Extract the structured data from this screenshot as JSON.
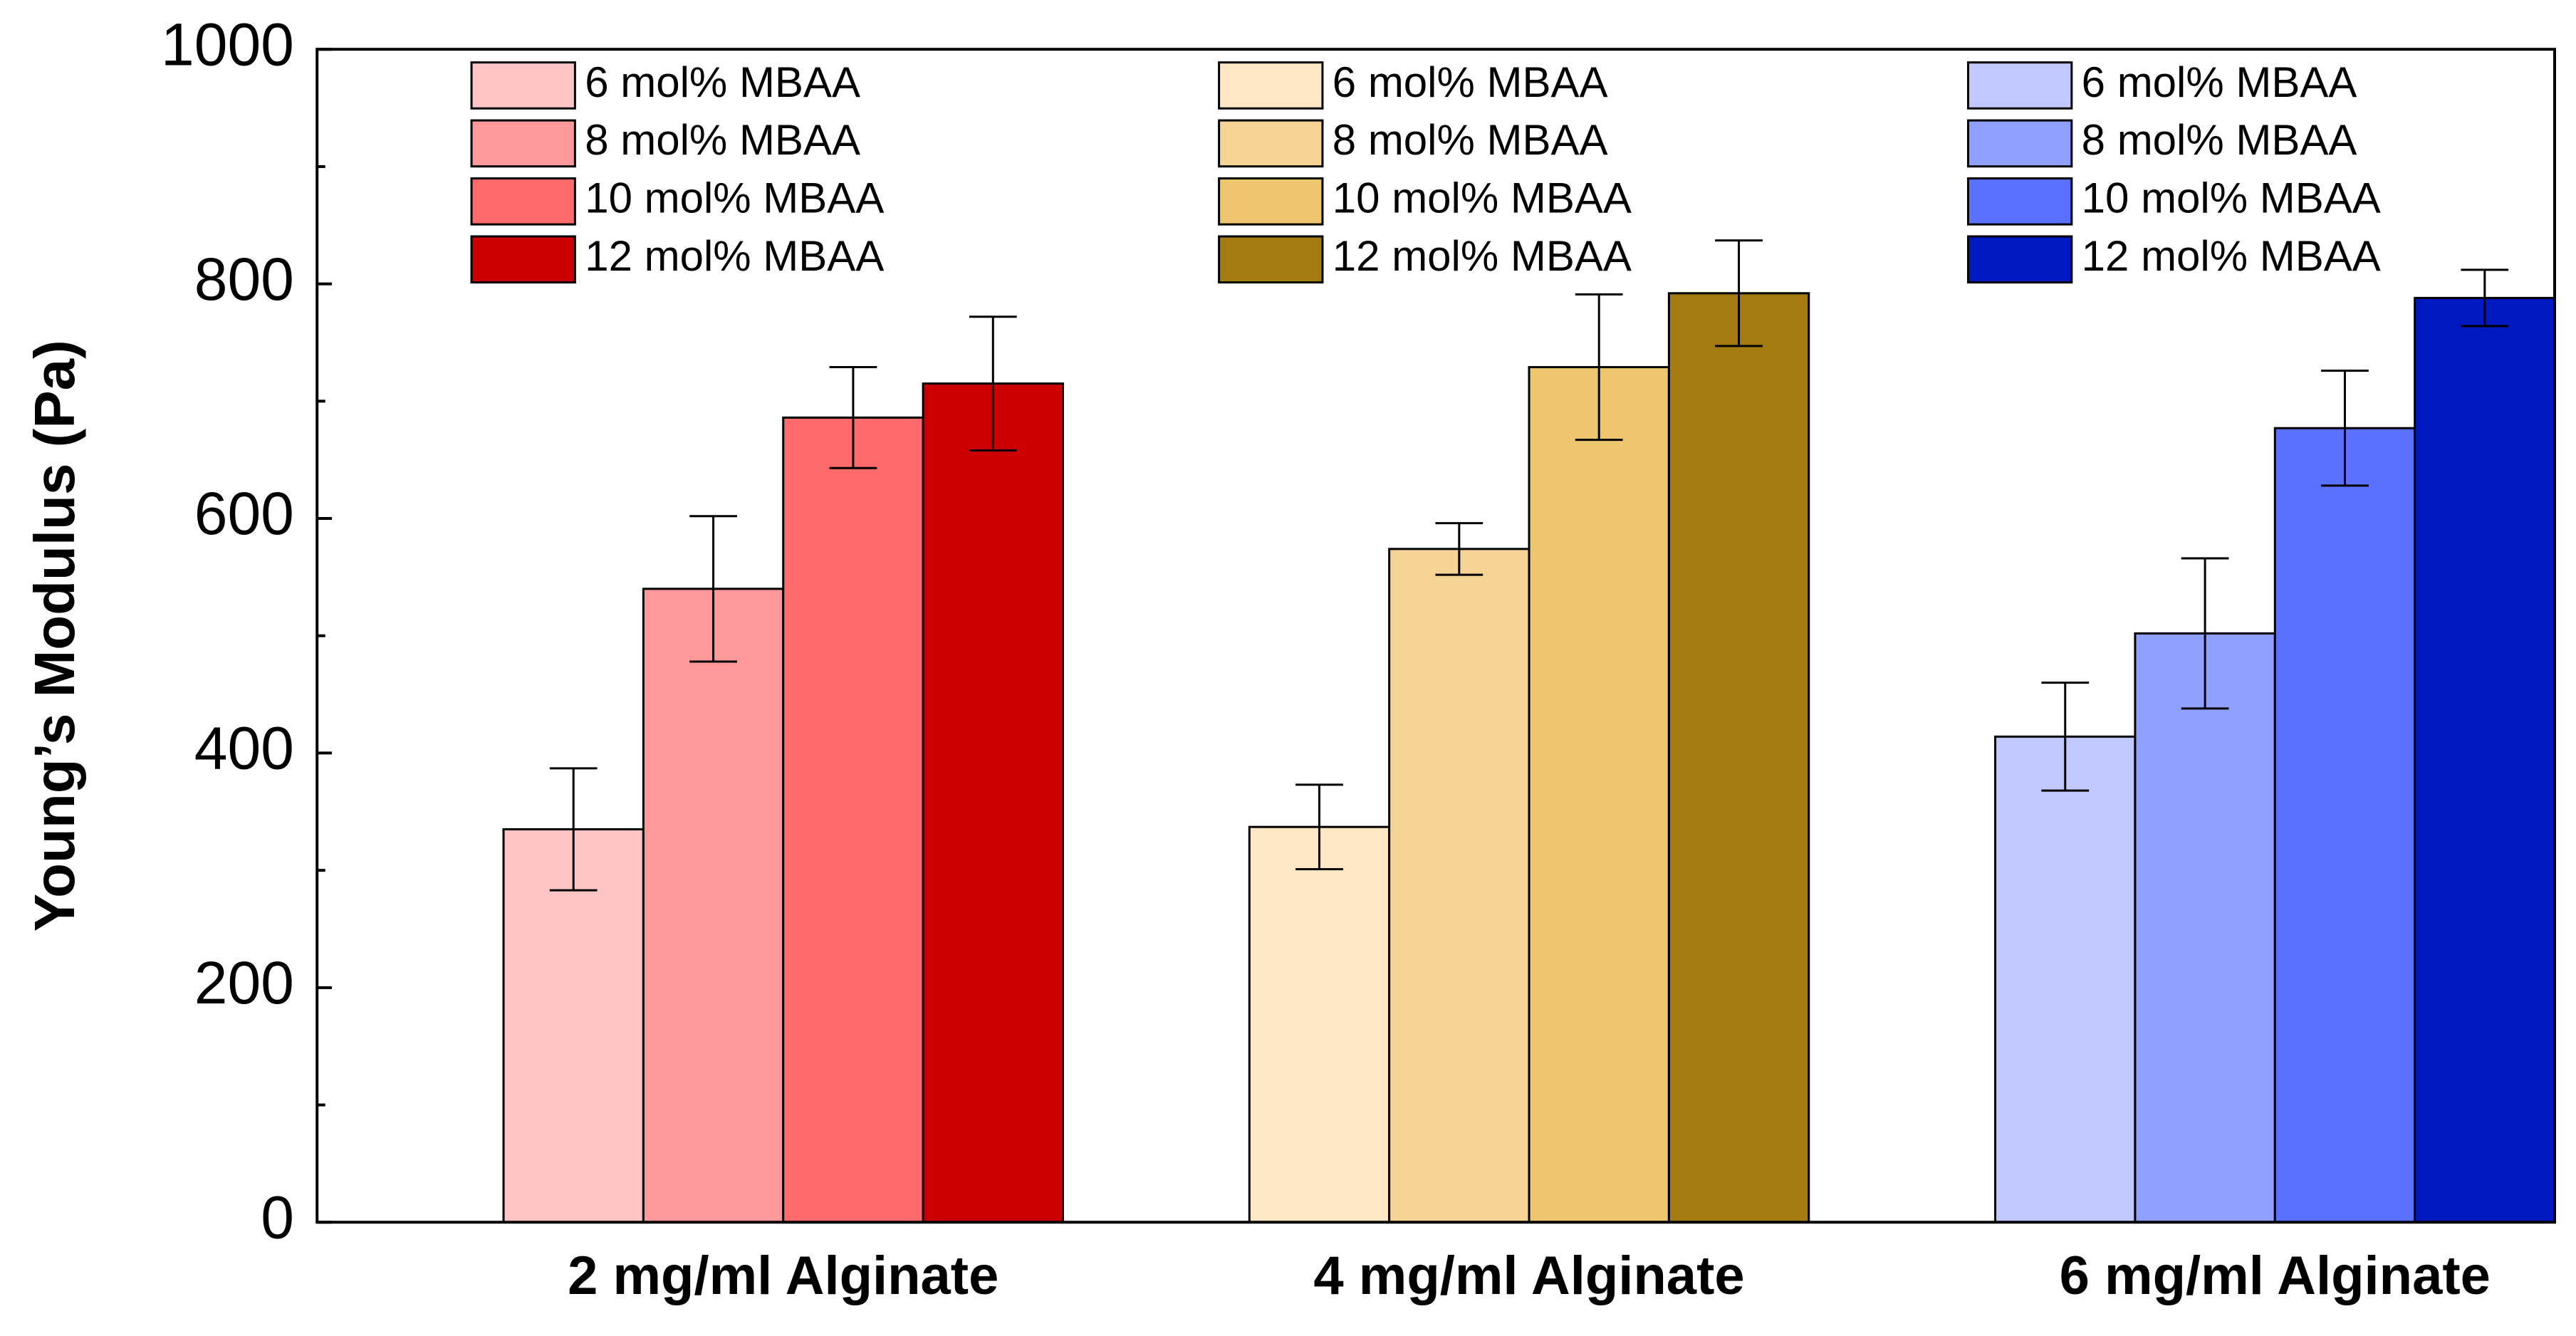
{
  "chart_data": {
    "type": "bar",
    "y_label": "Young’s Modulus (Pa)",
    "categories": [
      "2 mg/ml Alginate",
      "4 mg/ml Alginate",
      "6 mg/ml Alginate"
    ],
    "ylim": [
      0,
      1000
    ],
    "yticks": [
      0,
      200,
      400,
      600,
      800,
      1000
    ],
    "yminor_ticks": [
      100,
      300,
      500,
      700,
      900
    ],
    "series": [
      {
        "name": "6 mol% MBAA",
        "color": "#ffc4c4",
        "values": [
          335,
          null,
          null
        ],
        "errors": [
          52,
          null,
          null
        ]
      },
      {
        "name": "8 mol% MBAA",
        "color": "#ff9999",
        "values": [
          540,
          null,
          null
        ],
        "errors": [
          62,
          null,
          null
        ]
      },
      {
        "name": "10 mol% MBAA",
        "color": "#ff6b6b",
        "values": [
          686,
          null,
          null
        ],
        "errors": [
          43,
          null,
          null
        ]
      },
      {
        "name": "12 mol% MBAA",
        "color": "#cc0000",
        "values": [
          715,
          null,
          null
        ],
        "errors": [
          57,
          null,
          null
        ]
      },
      {
        "name": "6 mol% MBAA",
        "color": "#ffe6c4",
        "values": [
          null,
          337,
          null
        ],
        "errors": [
          null,
          36,
          null
        ]
      },
      {
        "name": "8 mol% MBAA",
        "color": "#f5d496",
        "values": [
          null,
          574,
          null
        ],
        "errors": [
          null,
          22,
          null
        ]
      },
      {
        "name": "10 mol% MBAA",
        "color": "#eec66e",
        "values": [
          null,
          729,
          null
        ],
        "errors": [
          null,
          62,
          null
        ]
      },
      {
        "name": "12 mol% MBAA",
        "color": "#a57a10",
        "values": [
          null,
          792,
          null
        ],
        "errors": [
          null,
          45,
          null
        ]
      },
      {
        "name": "6 mol% MBAA",
        "color": "#c0c8ff",
        "values": [
          null,
          null,
          414
        ],
        "errors": [
          null,
          null,
          46
        ]
      },
      {
        "name": "8 mol% MBAA",
        "color": "#8f9fff",
        "values": [
          null,
          null,
          502
        ],
        "errors": [
          null,
          null,
          64
        ]
      },
      {
        "name": "10 mol% MBAA",
        "color": "#5a70ff",
        "values": [
          null,
          null,
          677
        ],
        "errors": [
          null,
          null,
          49
        ]
      },
      {
        "name": "12 mol% MBAA",
        "color": "#0018c0",
        "values": [
          null,
          null,
          788
        ],
        "errors": [
          null,
          null,
          24
        ]
      }
    ]
  }
}
